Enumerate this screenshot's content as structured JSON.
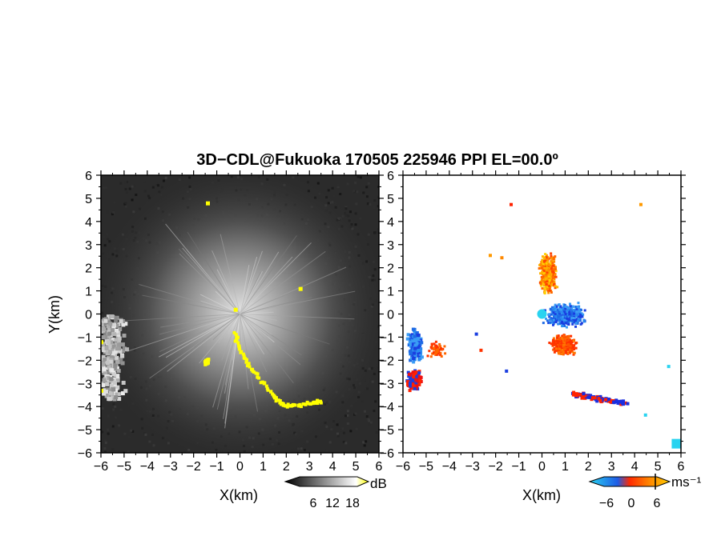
{
  "title": "3D−CDL@Fukuoka 170505 225946 PPI EL=00.0º",
  "panels": [
    {
      "name": "reflectivity",
      "xlabel": "X(km)",
      "ylabel": "Y(km)"
    },
    {
      "name": "doppler-velocity",
      "xlabel": "X(km)",
      "ylabel": ""
    }
  ],
  "axis_ticks": [
    "−6",
    "−5",
    "−4",
    "−3",
    "−2",
    "−1",
    "0",
    "1",
    "2",
    "3",
    "4",
    "5",
    "6"
  ],
  "colorbars": {
    "snr": {
      "unit": "dB",
      "tick_labels": [
        "6",
        "12",
        "18"
      ],
      "colors": [
        "#000000",
        "#ffffff",
        "#ffff00"
      ]
    },
    "velocity": {
      "unit": "ms⁻¹",
      "tick_labels": [
        "−6",
        "0",
        "6"
      ],
      "colors": [
        "#1e88e5",
        "#29d3f0",
        "#ff3300",
        "#ffcc00"
      ]
    }
  },
  "chart_data": [
    {
      "type": "heatmap",
      "title": "3D−CDL@Fukuoka 170505 225946 PPI EL=00.0º",
      "xlabel": "X(km)",
      "ylabel": "Y(km)",
      "xlim": [
        -6,
        6
      ],
      "ylim": [
        -6,
        6
      ],
      "colorbar": {
        "unit": "dB",
        "ticks": [
          6,
          12,
          18
        ]
      },
      "features": [
        {
          "kind": "high-snr-region",
          "x_range": [
            -6,
            -4.9
          ],
          "y_range": [
            -3.6,
            0
          ]
        },
        {
          "kind": "yellow-echo",
          "points": [
            [
              -0.3,
              -0.8
            ],
            [
              0,
              -1.6
            ],
            [
              0.6,
              -2.5
            ],
            [
              1.3,
              -3.4
            ],
            [
              1.8,
              -3.9
            ],
            [
              2.3,
              -3.9
            ],
            [
              3.0,
              -3.8
            ],
            [
              3.5,
              -3.7
            ]
          ]
        },
        {
          "kind": "yellow-echo",
          "points": [
            [
              -1.6,
              -2.1
            ],
            [
              -1.4,
              -1.9
            ]
          ]
        }
      ]
    },
    {
      "type": "heatmap",
      "xlabel": "X(km)",
      "xlim": [
        -6,
        6
      ],
      "ylim": [
        -6,
        6
      ],
      "colorbar": {
        "unit": "ms⁻¹",
        "ticks": [
          -6,
          0,
          6
        ]
      },
      "features": [
        {
          "kind": "velocity-cluster",
          "x": 0.2,
          "y": 1.6,
          "sign": "positive"
        },
        {
          "kind": "velocity-cluster",
          "x": 1.0,
          "y": 0.0,
          "sign": "negative"
        },
        {
          "kind": "velocity-cluster",
          "x": 0.9,
          "y": -1.3,
          "sign": "positive"
        },
        {
          "kind": "velocity-cluster",
          "x": -5.5,
          "y": -1.6,
          "sign": "negative"
        },
        {
          "kind": "velocity-cluster",
          "x": -5.6,
          "y": -2.8,
          "sign": "positive"
        },
        {
          "kind": "velocity-cluster",
          "x": 2.8,
          "y": -3.8,
          "sign": "mixed"
        }
      ]
    }
  ]
}
